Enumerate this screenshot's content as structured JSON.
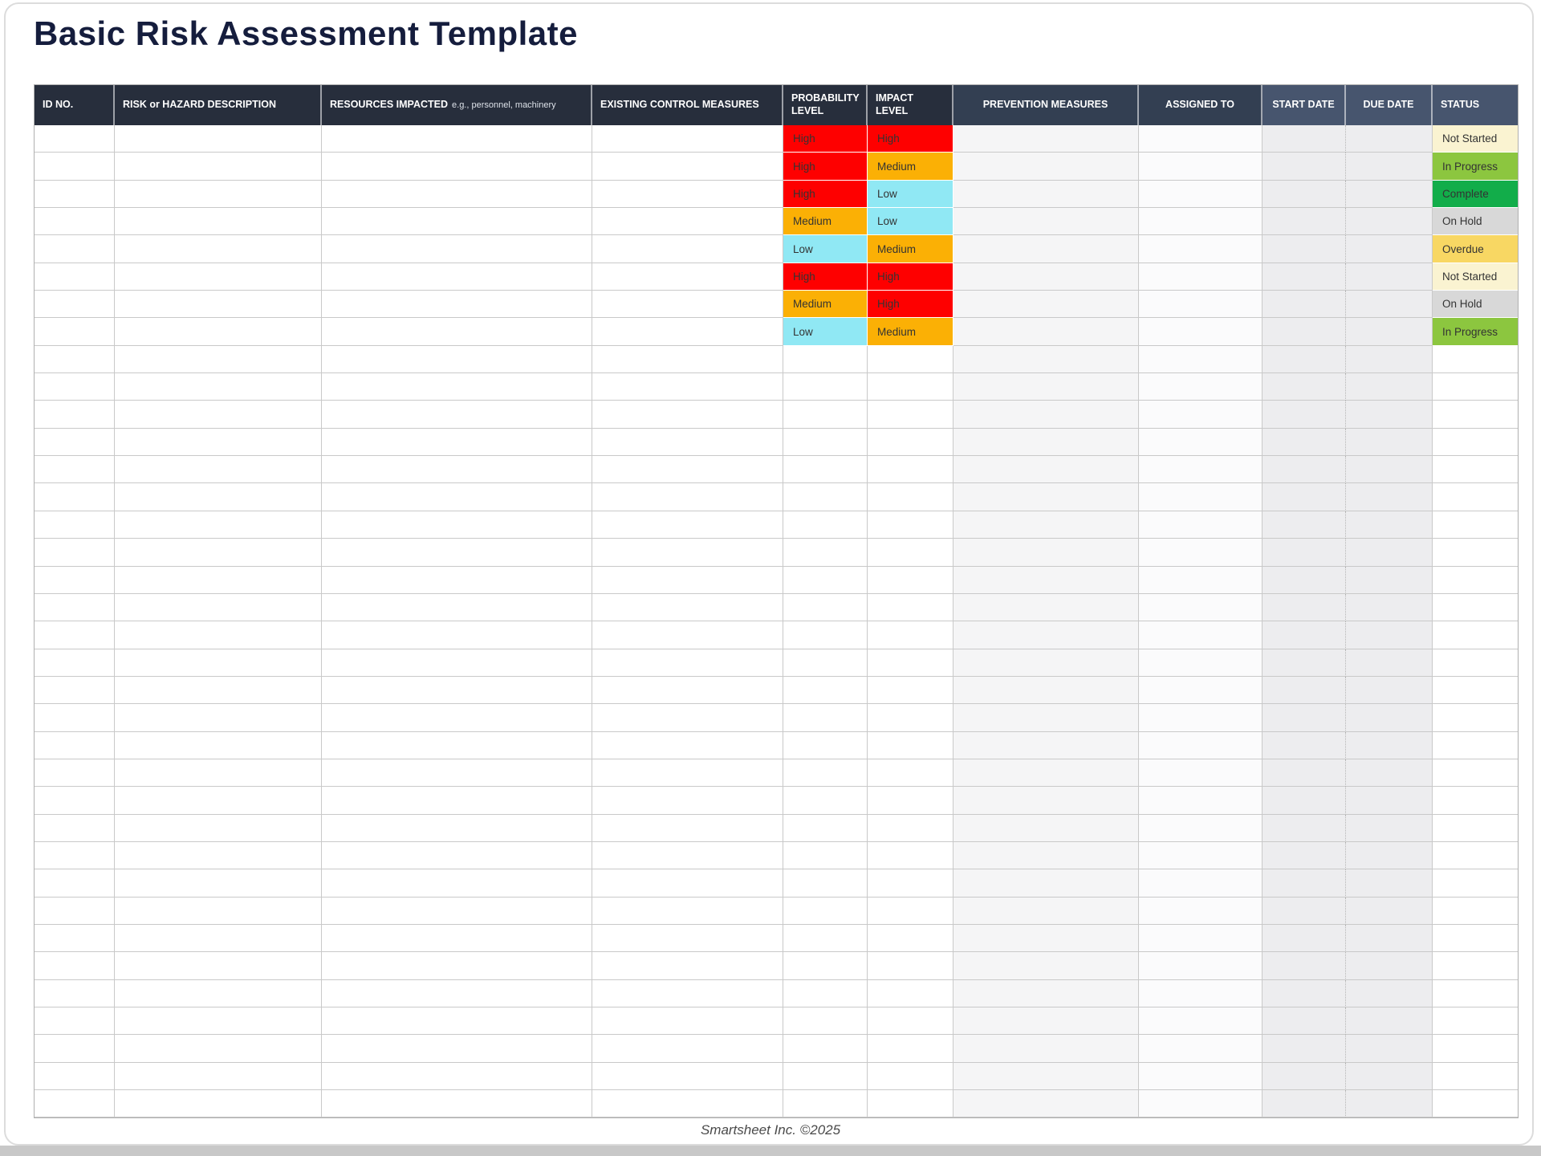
{
  "page": {
    "title": "Basic Risk Assessment Template",
    "footer": "Smartsheet Inc. ©2025"
  },
  "table": {
    "columns": [
      {
        "id": "id-no",
        "label": "ID NO."
      },
      {
        "id": "risk-description",
        "label": "RISK or HAZARD DESCRIPTION"
      },
      {
        "id": "resources-impacted",
        "label": "RESOURCES IMPACTED",
        "note": "e.g., personnel, machinery"
      },
      {
        "id": "existing-control-measures",
        "label": "EXISTING CONTROL MEASURES"
      },
      {
        "id": "probability-level",
        "label": "PROBABILITY LEVEL"
      },
      {
        "id": "impact-level",
        "label": "IMPACT LEVEL"
      },
      {
        "id": "prevention-measures",
        "label": "PREVENTION MEASURES"
      },
      {
        "id": "assigned-to",
        "label": "ASSIGNED TO"
      },
      {
        "id": "start-date",
        "label": "START DATE"
      },
      {
        "id": "due-date",
        "label": "DUE DATE"
      },
      {
        "id": "status",
        "label": "STATUS"
      }
    ],
    "filled_rows": [
      {
        "probability": "High",
        "impact": "High",
        "status": "Not Started"
      },
      {
        "probability": "High",
        "impact": "Medium",
        "status": "In Progress"
      },
      {
        "probability": "High",
        "impact": "Low",
        "status": "Complete"
      },
      {
        "probability": "Medium",
        "impact": "Low",
        "status": "On Hold"
      },
      {
        "probability": "Low",
        "impact": "Medium",
        "status": "Overdue"
      },
      {
        "probability": "High",
        "impact": "High",
        "status": "Not Started"
      },
      {
        "probability": "Medium",
        "impact": "High",
        "status": "On Hold"
      },
      {
        "probability": "Low",
        "impact": "Medium",
        "status": "In Progress"
      }
    ],
    "empty_row_count": 28,
    "level_colors": {
      "High": "#fe0000",
      "Medium": "#fbb005",
      "Low": "#90e8f4"
    },
    "status_colors": {
      "Not Started": "#faf3d1",
      "In Progress": "#8cc63f",
      "Complete": "#12ad4a",
      "On Hold": "#d8d8d8",
      "Overdue": "#f8d763"
    }
  }
}
